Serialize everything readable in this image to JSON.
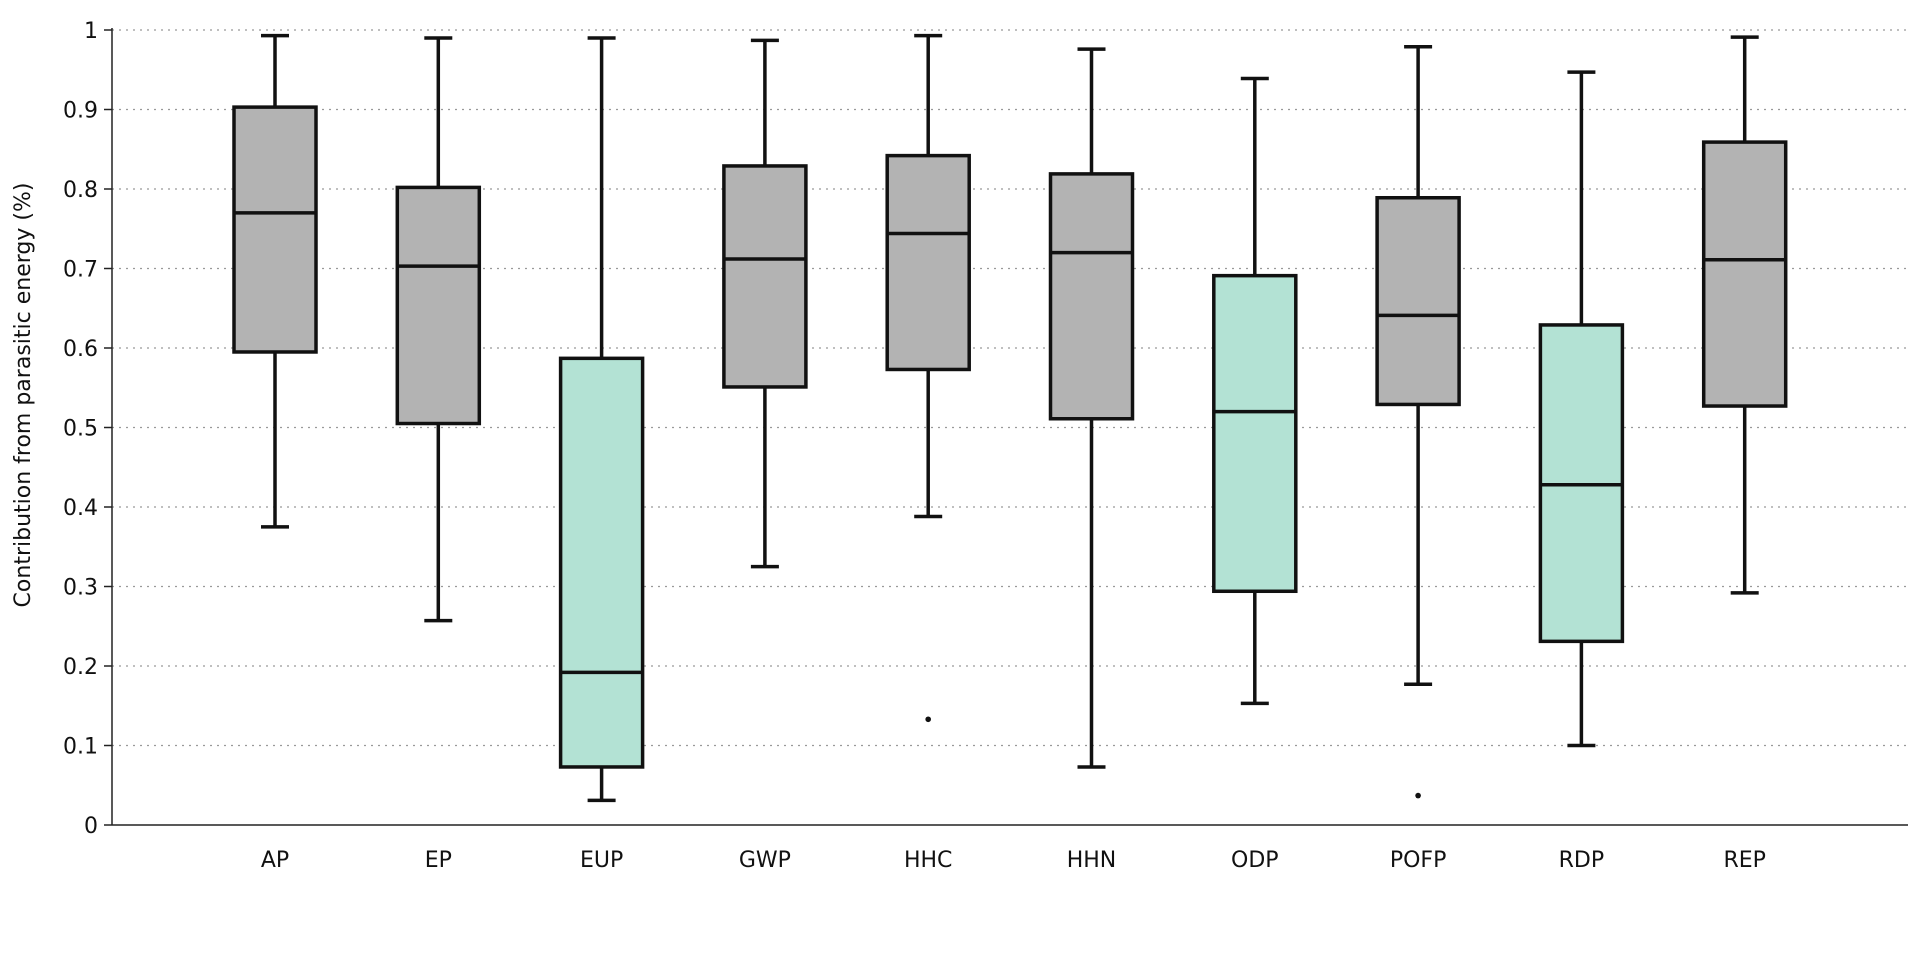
{
  "chart_data": {
    "type": "box",
    "title": "",
    "xlabel": "",
    "ylabel": "Contribution from parasitic energy (%)",
    "ylim": [
      0,
      1
    ],
    "yticks": [
      "0",
      "0.1",
      "0.2",
      "0.3",
      "0.4",
      "0.5",
      "0.6",
      "0.7",
      "0.8",
      "0.9",
      "1"
    ],
    "grid": true,
    "colors": {
      "gray": "#b3b3b3",
      "teal": "#b3e2d4"
    },
    "boxes": [
      {
        "category": "AP",
        "min": 0.375,
        "q1": 0.595,
        "median": 0.77,
        "q3": 0.903,
        "max": 0.993,
        "color": "gray",
        "outliers": []
      },
      {
        "category": "EP",
        "min": 0.257,
        "q1": 0.505,
        "median": 0.703,
        "q3": 0.802,
        "max": 0.99,
        "color": "gray",
        "outliers": []
      },
      {
        "category": "EUP",
        "min": 0.031,
        "q1": 0.073,
        "median": 0.192,
        "q3": 0.587,
        "max": 0.99,
        "color": "teal",
        "outliers": []
      },
      {
        "category": "GWP",
        "min": 0.325,
        "q1": 0.551,
        "median": 0.712,
        "q3": 0.829,
        "max": 0.987,
        "color": "gray",
        "outliers": []
      },
      {
        "category": "HHC",
        "min": 0.388,
        "q1": 0.573,
        "median": 0.744,
        "q3": 0.842,
        "max": 0.993,
        "color": "gray",
        "outliers": [
          0.133
        ]
      },
      {
        "category": "HHN",
        "min": 0.073,
        "q1": 0.511,
        "median": 0.72,
        "q3": 0.819,
        "max": 0.976,
        "color": "gray",
        "outliers": []
      },
      {
        "category": "ODP",
        "min": 0.153,
        "q1": 0.294,
        "median": 0.52,
        "q3": 0.691,
        "max": 0.939,
        "color": "teal",
        "outliers": []
      },
      {
        "category": "POFP",
        "min": 0.177,
        "q1": 0.529,
        "median": 0.641,
        "q3": 0.789,
        "max": 0.979,
        "color": "gray",
        "outliers": [
          0.037
        ]
      },
      {
        "category": "RDP",
        "min": 0.1,
        "q1": 0.231,
        "median": 0.428,
        "q3": 0.629,
        "max": 0.947,
        "color": "teal",
        "outliers": []
      },
      {
        "category": "REP",
        "min": 0.292,
        "q1": 0.527,
        "median": 0.711,
        "q3": 0.859,
        "max": 0.991,
        "color": "gray",
        "outliers": []
      }
    ]
  }
}
